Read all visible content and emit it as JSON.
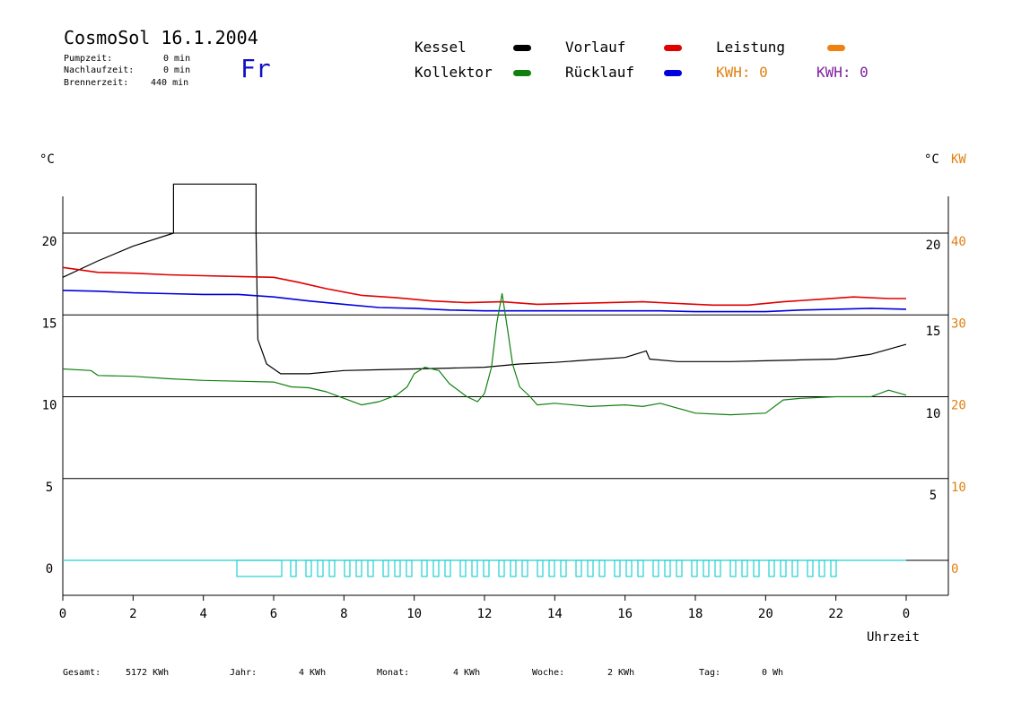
{
  "header": {
    "title": "CosmoSol 16.1.2004",
    "day": "Fr",
    "stats": [
      {
        "label": "Pumpzeit:",
        "value": "0 min"
      },
      {
        "label": "Nachlaufzeit:",
        "value": "0 min"
      },
      {
        "label": "Brennerzeit:",
        "value": "440 min"
      }
    ]
  },
  "legend": {
    "kessel": {
      "label": "Kessel",
      "color": "#000000"
    },
    "kollektor": {
      "label": "Kollektor",
      "color": "#108010"
    },
    "vorlauf": {
      "label": "Vorlauf",
      "color": "#e00000"
    },
    "ruecklauf": {
      "label": "Rücklauf",
      "color": "#0000e0"
    },
    "leistung": {
      "label": "Leistung",
      "color": "#f08010"
    },
    "kwh_orange": {
      "label": "KWH: 0",
      "color": "#e08010"
    },
    "kwh_purple": {
      "label": "KWH: 0",
      "color": "#8020a0"
    }
  },
  "footer": [
    {
      "label": "Gesamt:",
      "value": "5172 KWh"
    },
    {
      "label": "Jahr:",
      "value": "4 KWh"
    },
    {
      "label": "Monat:",
      "value": "4 KWh"
    },
    {
      "label": "Woche:",
      "value": "2 KWh"
    },
    {
      "label": "Tag:",
      "value": "0 Wh"
    }
  ],
  "chart_data": {
    "type": "line",
    "left_axis_unit": "°C",
    "right_axis_unit": "°C",
    "right_axis_unit2": "KW",
    "xlabel": "Uhrzeit",
    "x_ticks": [
      "0",
      "2",
      "4",
      "6",
      "8",
      "10",
      "12",
      "14",
      "16",
      "18",
      "20",
      "22",
      "0"
    ],
    "xlim": [
      0,
      24
    ],
    "ylim": [
      -2,
      23
    ],
    "left_ticks": [
      0,
      5,
      10,
      15,
      20
    ],
    "right_ticks_temp": [
      5,
      10,
      15,
      20
    ],
    "right_ticks_kw": [
      0,
      10,
      20,
      30,
      40
    ],
    "grid": true,
    "series": [
      {
        "name": "Kessel",
        "color": "#000000",
        "points": [
          [
            0,
            17.3
          ],
          [
            1,
            18.3
          ],
          [
            2,
            19.2
          ],
          [
            3.15,
            20
          ],
          [
            3.15,
            23
          ],
          [
            5.5,
            23
          ],
          [
            5.5,
            20
          ],
          [
            5.55,
            13.5
          ],
          [
            5.8,
            12
          ],
          [
            6.2,
            11.4
          ],
          [
            7,
            11.4
          ],
          [
            8,
            11.6
          ],
          [
            9,
            11.65
          ],
          [
            10,
            11.7
          ],
          [
            11,
            11.75
          ],
          [
            12,
            11.8
          ],
          [
            13,
            12
          ],
          [
            14,
            12.1
          ],
          [
            15,
            12.25
          ],
          [
            16,
            12.4
          ],
          [
            16.6,
            12.8
          ],
          [
            16.7,
            12.3
          ],
          [
            17.5,
            12.15
          ],
          [
            19,
            12.15
          ],
          [
            20,
            12.2
          ],
          [
            21,
            12.25
          ],
          [
            22,
            12.3
          ],
          [
            23,
            12.6
          ],
          [
            24,
            13.2
          ]
        ]
      },
      {
        "name": "Vorlauf",
        "color": "#e00000",
        "points": [
          [
            0,
            17.9
          ],
          [
            1,
            17.6
          ],
          [
            2,
            17.55
          ],
          [
            3,
            17.45
          ],
          [
            4,
            17.4
          ],
          [
            5,
            17.35
          ],
          [
            6,
            17.3
          ],
          [
            6.7,
            17.0
          ],
          [
            7.5,
            16.6
          ],
          [
            8.5,
            16.2
          ],
          [
            9.5,
            16.05
          ],
          [
            10.5,
            15.85
          ],
          [
            11.5,
            15.75
          ],
          [
            12.5,
            15.8
          ],
          [
            13.5,
            15.65
          ],
          [
            14.5,
            15.7
          ],
          [
            15.5,
            15.75
          ],
          [
            16.5,
            15.8
          ],
          [
            17.5,
            15.7
          ],
          [
            18.5,
            15.6
          ],
          [
            19.5,
            15.6
          ],
          [
            20.5,
            15.8
          ],
          [
            21.5,
            15.95
          ],
          [
            22.5,
            16.1
          ],
          [
            23.5,
            16.0
          ],
          [
            24,
            16.0
          ]
        ]
      },
      {
        "name": "Rücklauf",
        "color": "#0000e0",
        "points": [
          [
            0,
            16.5
          ],
          [
            1,
            16.45
          ],
          [
            2,
            16.35
          ],
          [
            3,
            16.3
          ],
          [
            4,
            16.25
          ],
          [
            5,
            16.25
          ],
          [
            6,
            16.1
          ],
          [
            7,
            15.85
          ],
          [
            8,
            15.65
          ],
          [
            9,
            15.45
          ],
          [
            10,
            15.4
          ],
          [
            11,
            15.3
          ],
          [
            12,
            15.25
          ],
          [
            13,
            15.25
          ],
          [
            14,
            15.25
          ],
          [
            15,
            15.25
          ],
          [
            16,
            15.25
          ],
          [
            17,
            15.25
          ],
          [
            18,
            15.2
          ],
          [
            19,
            15.2
          ],
          [
            20,
            15.2
          ],
          [
            21,
            15.3
          ],
          [
            22,
            15.35
          ],
          [
            23,
            15.4
          ],
          [
            24,
            15.35
          ]
        ]
      },
      {
        "name": "Kollektor",
        "color": "#108010",
        "points": [
          [
            0,
            11.7
          ],
          [
            0.8,
            11.6
          ],
          [
            1,
            11.3
          ],
          [
            2,
            11.25
          ],
          [
            3,
            11.1
          ],
          [
            4,
            11.0
          ],
          [
            5,
            10.95
          ],
          [
            6,
            10.9
          ],
          [
            6.5,
            10.6
          ],
          [
            7,
            10.55
          ],
          [
            7.5,
            10.3
          ],
          [
            8,
            9.9
          ],
          [
            8.5,
            9.5
          ],
          [
            9,
            9.7
          ],
          [
            9.5,
            10.1
          ],
          [
            9.8,
            10.6
          ],
          [
            10,
            11.4
          ],
          [
            10.3,
            11.8
          ],
          [
            10.7,
            11.6
          ],
          [
            11,
            10.8
          ],
          [
            11.5,
            10.0
          ],
          [
            11.8,
            9.7
          ],
          [
            12,
            10.2
          ],
          [
            12.2,
            11.8
          ],
          [
            12.35,
            14.5
          ],
          [
            12.5,
            16.3
          ],
          [
            12.65,
            14.2
          ],
          [
            12.8,
            12.0
          ],
          [
            13,
            10.6
          ],
          [
            13.3,
            10.0
          ],
          [
            13.5,
            9.5
          ],
          [
            14,
            9.6
          ],
          [
            15,
            9.4
          ],
          [
            16,
            9.5
          ],
          [
            16.5,
            9.4
          ],
          [
            17,
            9.6
          ],
          [
            17.5,
            9.3
          ],
          [
            18,
            9.0
          ],
          [
            19,
            8.9
          ],
          [
            20,
            9.0
          ],
          [
            20.5,
            9.8
          ],
          [
            21,
            9.9
          ],
          [
            22,
            10.0
          ],
          [
            23,
            10.0
          ],
          [
            23.5,
            10.4
          ],
          [
            24,
            10.1
          ]
        ]
      }
    ]
  }
}
